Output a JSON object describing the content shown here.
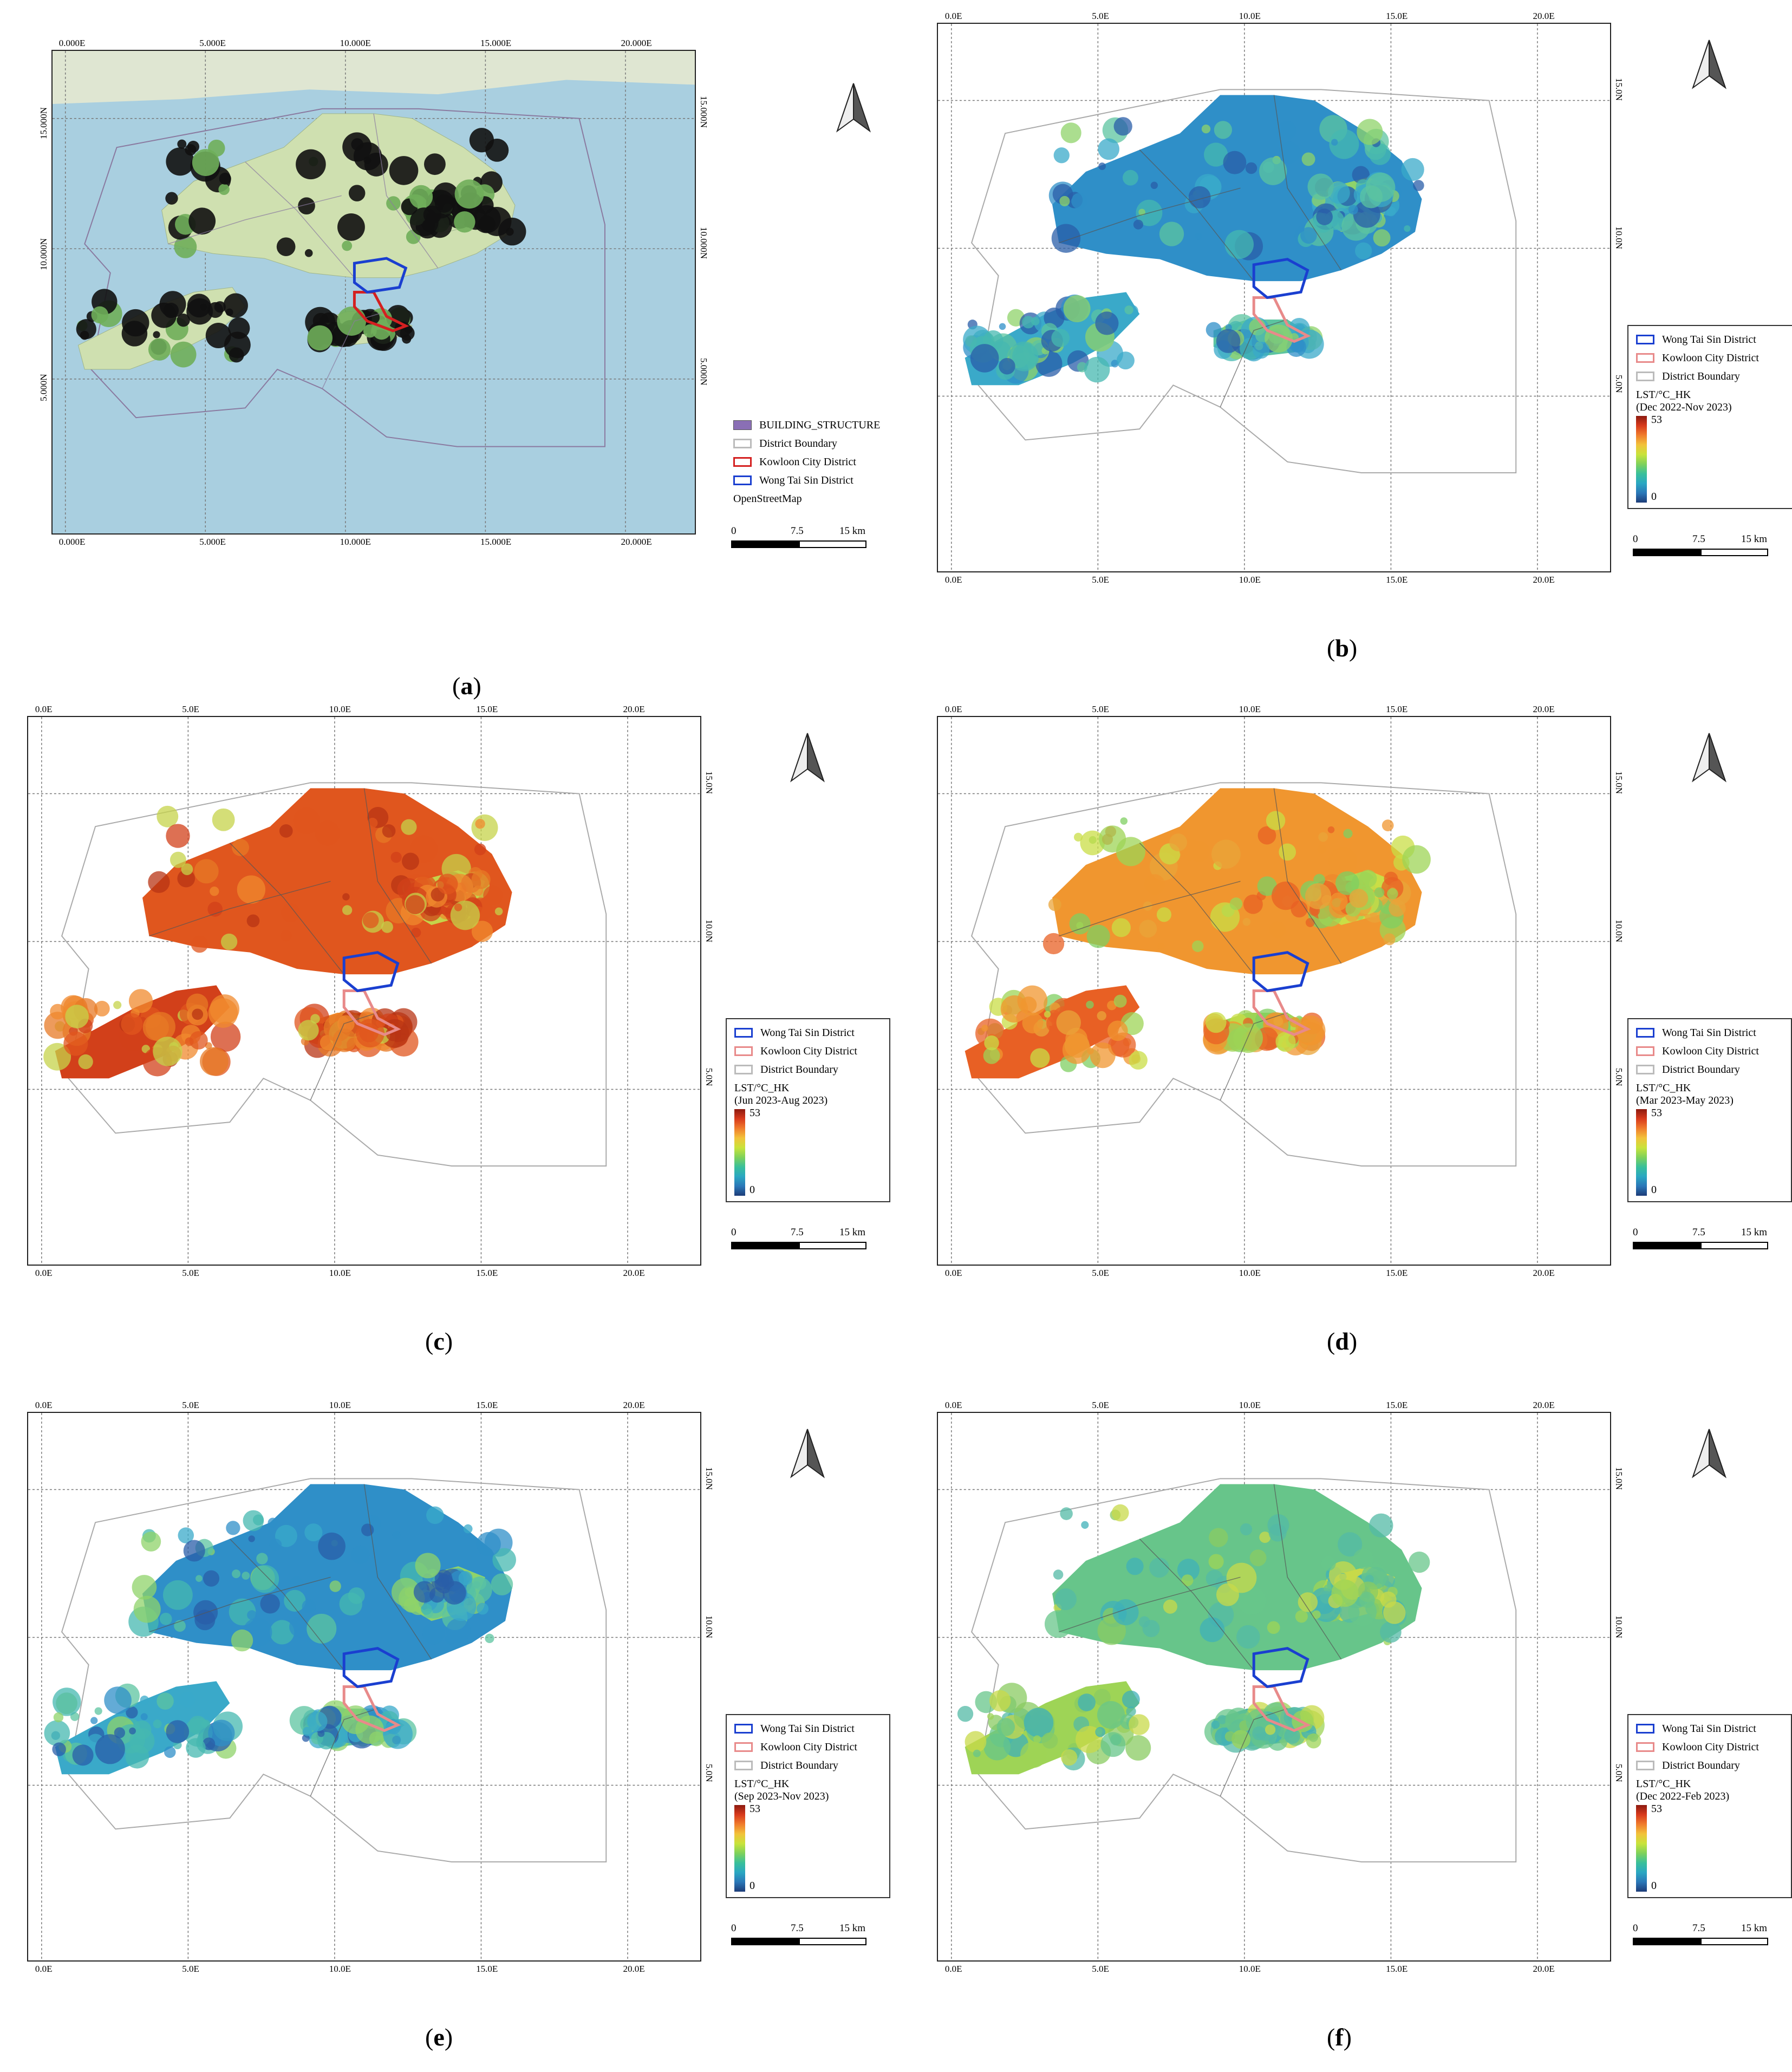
{
  "panels": [
    {
      "id": "a",
      "caption_letter": "a",
      "x_ticks_top": [
        "0.000E",
        "5.000E",
        "10.000E",
        "15.000E",
        "20.000E"
      ],
      "x_ticks_bottom": [
        "0.000E",
        "5.000E",
        "10.000E",
        "15.000E",
        "20.000E"
      ],
      "y_ticks_left": [
        "15.000N",
        "10.000N",
        "5.000N"
      ],
      "y_ticks_right": [
        "15.000N",
        "10.000N",
        "5.000N"
      ],
      "legend": {
        "items": [
          {
            "label": "BUILDING_STRUCTURE",
            "swatch": "#8a6fb5",
            "type": "fill"
          },
          {
            "label": "District Boundary",
            "swatch": "#bbbbbb",
            "type": "outline"
          },
          {
            "label": "Kowloon City District",
            "swatch": "#d42020",
            "type": "outline"
          },
          {
            "label": "Wong Tai Sin District",
            "swatch": "#1a3fd0",
            "type": "outline"
          }
        ],
        "basemap": "OpenStreetMap"
      },
      "scalebar": {
        "labels": [
          "0",
          "7.5",
          "15 km"
        ]
      }
    },
    {
      "id": "b",
      "caption_letter": "b",
      "x_ticks_top": [
        "0.0E",
        "5.0E",
        "10.0E",
        "15.0E",
        "20.0E"
      ],
      "x_ticks_bottom": [
        "0.0E",
        "5.0E",
        "10.0E",
        "15.0E",
        "20.0E"
      ],
      "y_ticks_right": [
        "15.0N",
        "10.0N",
        "5.0N"
      ],
      "legend": {
        "items": [
          {
            "label": "Wong Tai Sin District",
            "swatch": "#1a3fd0",
            "type": "outline"
          },
          {
            "label": "Kowloon City District",
            "swatch": "#e88a8a",
            "type": "outline"
          },
          {
            "label": "District Boundary",
            "swatch": "#bbbbbb",
            "type": "outline"
          }
        ],
        "lst_title": "LST/°C_HK",
        "period": "(Dec 2022-Nov 2023)",
        "max": "53",
        "min": "0"
      },
      "scalebar": {
        "labels": [
          "0",
          "7.5",
          "15 km"
        ]
      },
      "scheme": "cool"
    },
    {
      "id": "c",
      "caption_letter": "c",
      "x_ticks_top": [
        "0.0E",
        "5.0E",
        "10.0E",
        "15.0E",
        "20.0E"
      ],
      "x_ticks_bottom": [
        "0.0E",
        "5.0E",
        "10.0E",
        "15.0E",
        "20.0E"
      ],
      "y_ticks_right": [
        "15.0N",
        "10.0N",
        "5.0N"
      ],
      "legend": {
        "items": [
          {
            "label": "Wong Tai Sin District",
            "swatch": "#1a3fd0",
            "type": "outline"
          },
          {
            "label": "Kowloon City District",
            "swatch": "#e88a8a",
            "type": "outline"
          },
          {
            "label": "District Boundary",
            "swatch": "#bbbbbb",
            "type": "outline"
          }
        ],
        "lst_title": "LST/°C_HK",
        "period": "(Jun 2023-Aug 2023)",
        "max": "53",
        "min": "0"
      },
      "scalebar": {
        "labels": [
          "0",
          "7.5",
          "15 km"
        ]
      },
      "scheme": "hot"
    },
    {
      "id": "d",
      "caption_letter": "d",
      "x_ticks_top": [
        "0.0E",
        "5.0E",
        "10.0E",
        "15.0E",
        "20.0E"
      ],
      "x_ticks_bottom": [
        "0.0E",
        "5.0E",
        "10.0E",
        "15.0E",
        "20.0E"
      ],
      "y_ticks_right": [
        "15.0N",
        "10.0N",
        "5.0N"
      ],
      "legend": {
        "items": [
          {
            "label": "Wong Tai Sin District",
            "swatch": "#1a3fd0",
            "type": "outline"
          },
          {
            "label": "Kowloon City District",
            "swatch": "#e88a8a",
            "type": "outline"
          },
          {
            "label": "District Boundary",
            "swatch": "#bbbbbb",
            "type": "outline"
          }
        ],
        "lst_title": "LST/°C_HK",
        "period": "(Mar 2023-May 2023)",
        "max": "53",
        "min": "0"
      },
      "scalebar": {
        "labels": [
          "0",
          "7.5",
          "15 km"
        ]
      },
      "scheme": "warm"
    },
    {
      "id": "e",
      "caption_letter": "e",
      "x_ticks_top": [
        "0.0E",
        "5.0E",
        "10.0E",
        "15.0E",
        "20.0E"
      ],
      "x_ticks_bottom": [
        "0.0E",
        "5.0E",
        "10.0E",
        "15.0E",
        "20.0E"
      ],
      "y_ticks_right": [
        "15.0N",
        "10.0N",
        "5.0N"
      ],
      "legend": {
        "items": [
          {
            "label": "Wong Tai Sin District",
            "swatch": "#1a3fd0",
            "type": "outline"
          },
          {
            "label": "Kowloon City District",
            "swatch": "#e88a8a",
            "type": "outline"
          },
          {
            "label": "District Boundary",
            "swatch": "#bbbbbb",
            "type": "outline"
          }
        ],
        "lst_title": "LST/°C_HK",
        "period": "(Sep 2023-Nov 2023)",
        "max": "53",
        "min": "0"
      },
      "scalebar": {
        "labels": [
          "0",
          "7.5",
          "15 km"
        ]
      },
      "scheme": "cool"
    },
    {
      "id": "f",
      "caption_letter": "f",
      "x_ticks_top": [
        "0.0E",
        "5.0E",
        "10.0E",
        "15.0E",
        "20.0E"
      ],
      "x_ticks_bottom": [
        "0.0E",
        "5.0E",
        "10.0E",
        "15.0E",
        "20.0E"
      ],
      "y_ticks_right": [
        "15.0N",
        "10.0N",
        "5.0N"
      ],
      "legend": {
        "items": [
          {
            "label": "Wong Tai Sin District",
            "swatch": "#1a3fd0",
            "type": "outline"
          },
          {
            "label": "Kowloon City District",
            "swatch": "#e88a8a",
            "type": "outline"
          },
          {
            "label": "District Boundary",
            "swatch": "#bbbbbb",
            "type": "outline"
          }
        ],
        "lst_title": "LST/°C_HK",
        "period": "(Dec 2022-Feb 2023)",
        "max": "53",
        "min": "0"
      },
      "scalebar": {
        "labels": [
          "0",
          "7.5",
          "15 km"
        ]
      },
      "scheme": "mild"
    }
  ]
}
